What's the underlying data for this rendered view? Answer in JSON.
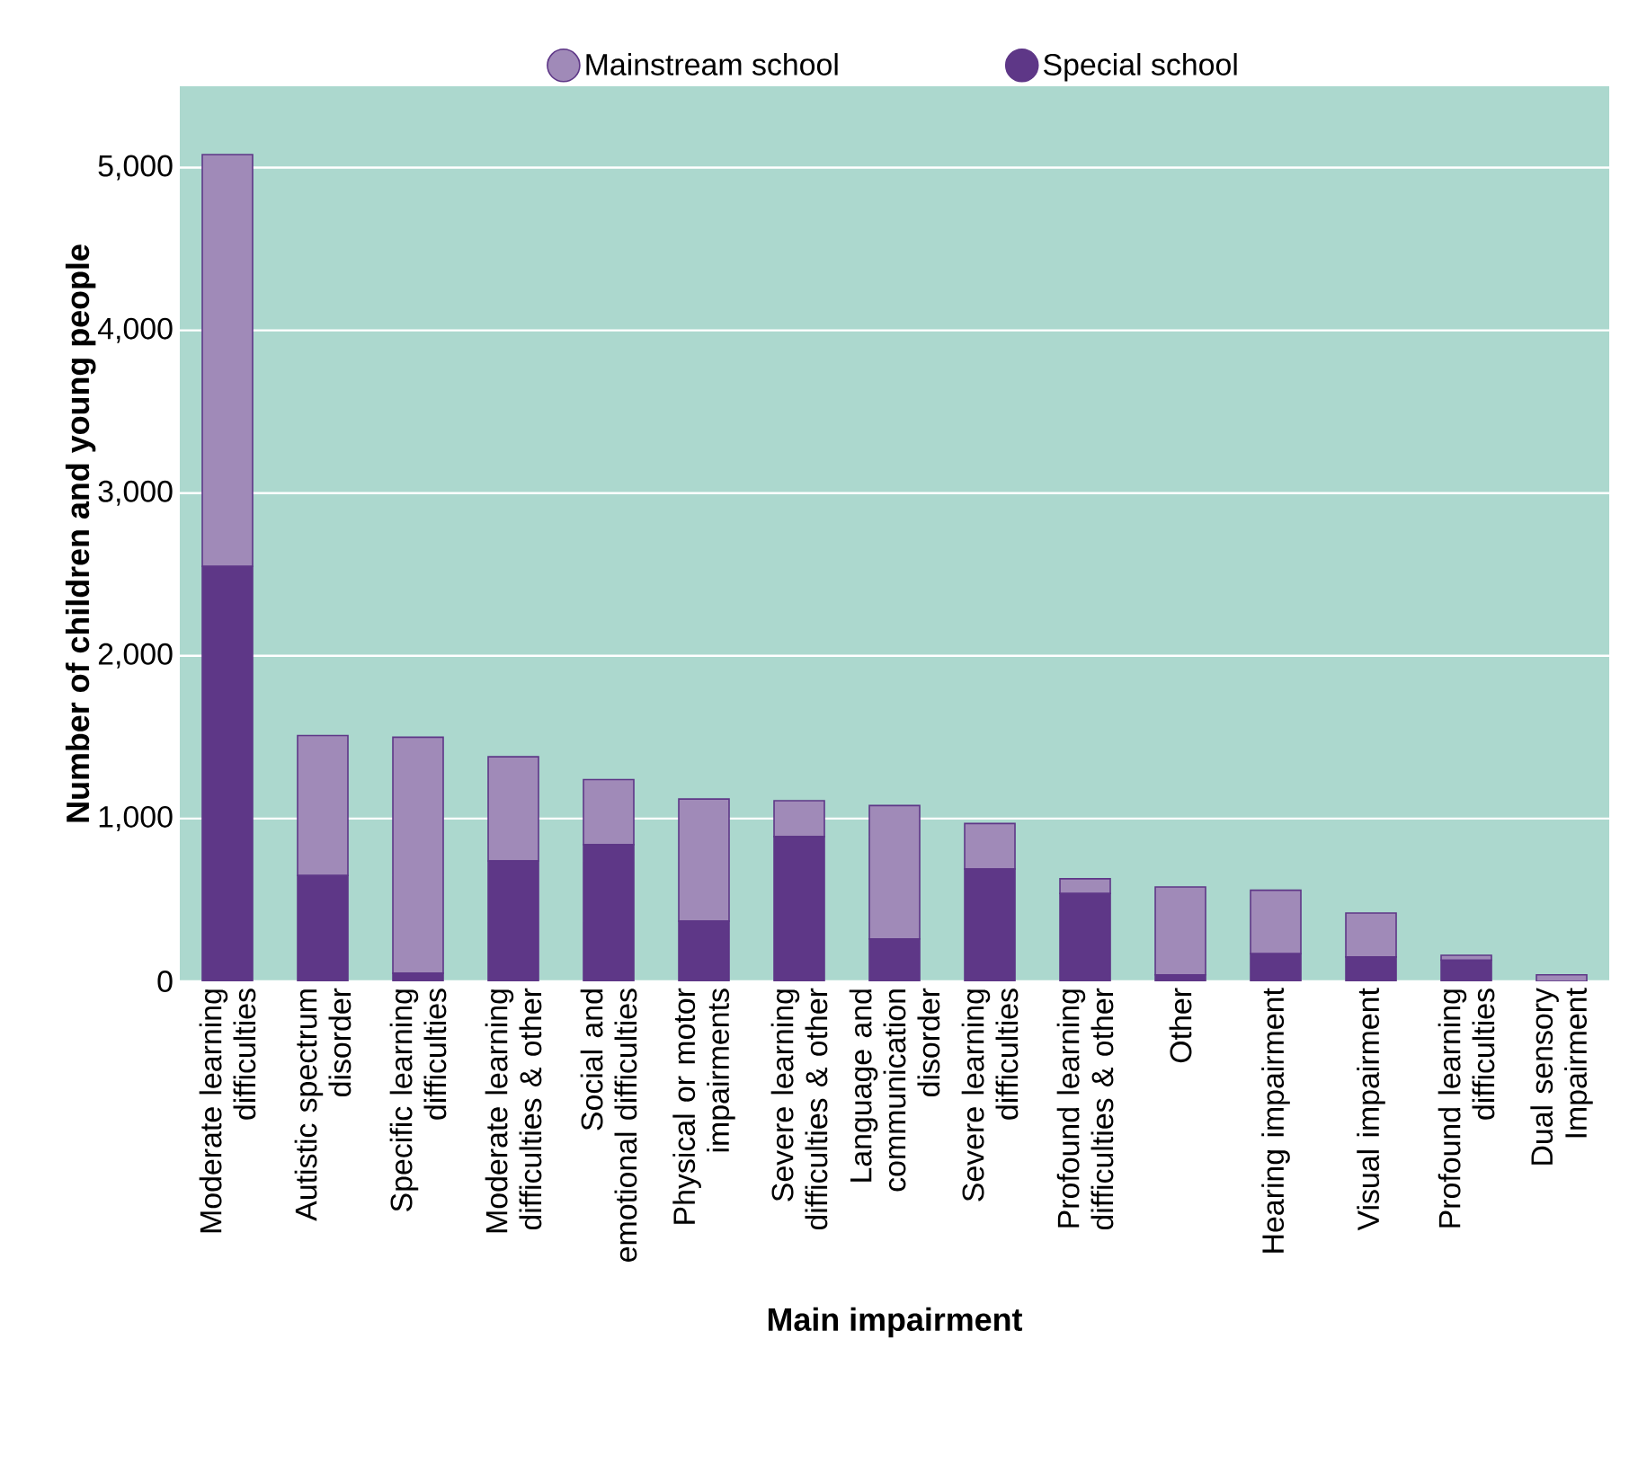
{
  "chart_data": {
    "type": "bar",
    "stacked": true,
    "xlabel": "Main impairment",
    "ylabel": "Number of children and young people",
    "categories": [
      "Moderate learning difficulties",
      "Autistic spectrum disorder",
      "Specific learning difficulties",
      "Moderate learning difficulties & other",
      "Social and emotional difficulties",
      "Physical or motor impairments",
      "Severe learning difficulties & other",
      "Language and communication disorder",
      "Severe learning difficulties",
      "Profound learning difficulties & other",
      "Other",
      "Hearing impairment",
      "Visual impairment",
      "Profound learning difficulties",
      "Dual sensory Impairment"
    ],
    "series": [
      {
        "name": "Special school",
        "color": "#5e3787",
        "values": [
          2550,
          650,
          50,
          740,
          840,
          370,
          890,
          260,
          690,
          540,
          40,
          170,
          150,
          130,
          null
        ]
      },
      {
        "name": "Mainstream school",
        "color": "#a08ab8",
        "values": [
          2530,
          860,
          1450,
          640,
          400,
          750,
          220,
          820,
          280,
          90,
          540,
          390,
          270,
          30,
          40
        ]
      }
    ],
    "ylim": [
      0,
      5500
    ],
    "yticks": [
      0,
      {
        "value": 1000,
        "label": "1,000"
      },
      {
        "value": 2000,
        "label": "2,000"
      },
      {
        "value": 3000,
        "label": "3,000"
      },
      {
        "value": 4000,
        "label": "4,000"
      },
      {
        "value": 5000,
        "label": "5,000"
      }
    ],
    "grid": "y",
    "legend": "top"
  }
}
